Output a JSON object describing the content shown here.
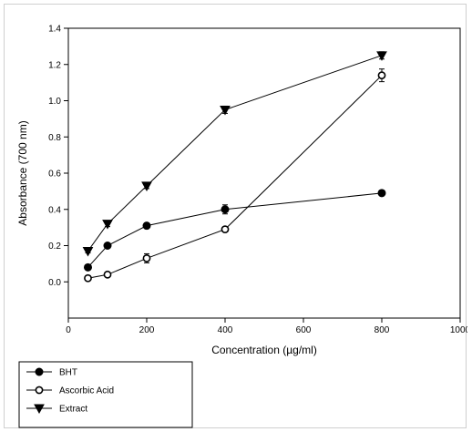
{
  "chart_data": {
    "type": "line",
    "title": "",
    "xlabel": "Concentration (µg/ml)",
    "ylabel": "Absorbance (700 nm)",
    "xlim": [
      0,
      1000
    ],
    "ylim": [
      -0.2,
      1.4
    ],
    "x_ticks": [
      "0",
      "200",
      "400",
      "600",
      "800",
      "1000"
    ],
    "y_ticks": [
      "0.0",
      "0.2",
      "0.4",
      "0.6",
      "0.8",
      "1.0",
      "1.2",
      "1.4"
    ],
    "grid": false,
    "legend_position": "bottom-left, below the plot",
    "x": [
      50,
      100,
      200,
      400,
      800
    ],
    "series": [
      {
        "name": "BHT",
        "marker": "filled-circle",
        "values": [
          0.08,
          0.2,
          0.31,
          0.4,
          0.49
        ],
        "errors": [
          0.01,
          0.01,
          0.015,
          0.025,
          0.015
        ]
      },
      {
        "name": "Ascorbic Acid",
        "marker": "open-circle",
        "values": [
          0.02,
          0.04,
          0.13,
          0.29,
          1.14
        ],
        "errors": [
          0.01,
          0.01,
          0.025,
          0.01,
          0.035
        ]
      },
      {
        "name": "Extract",
        "marker": "filled-triangle-down",
        "values": [
          0.17,
          0.32,
          0.53,
          0.95,
          1.25
        ],
        "errors": [
          0.01,
          0.015,
          0.015,
          0.02,
          0.02
        ]
      }
    ]
  }
}
